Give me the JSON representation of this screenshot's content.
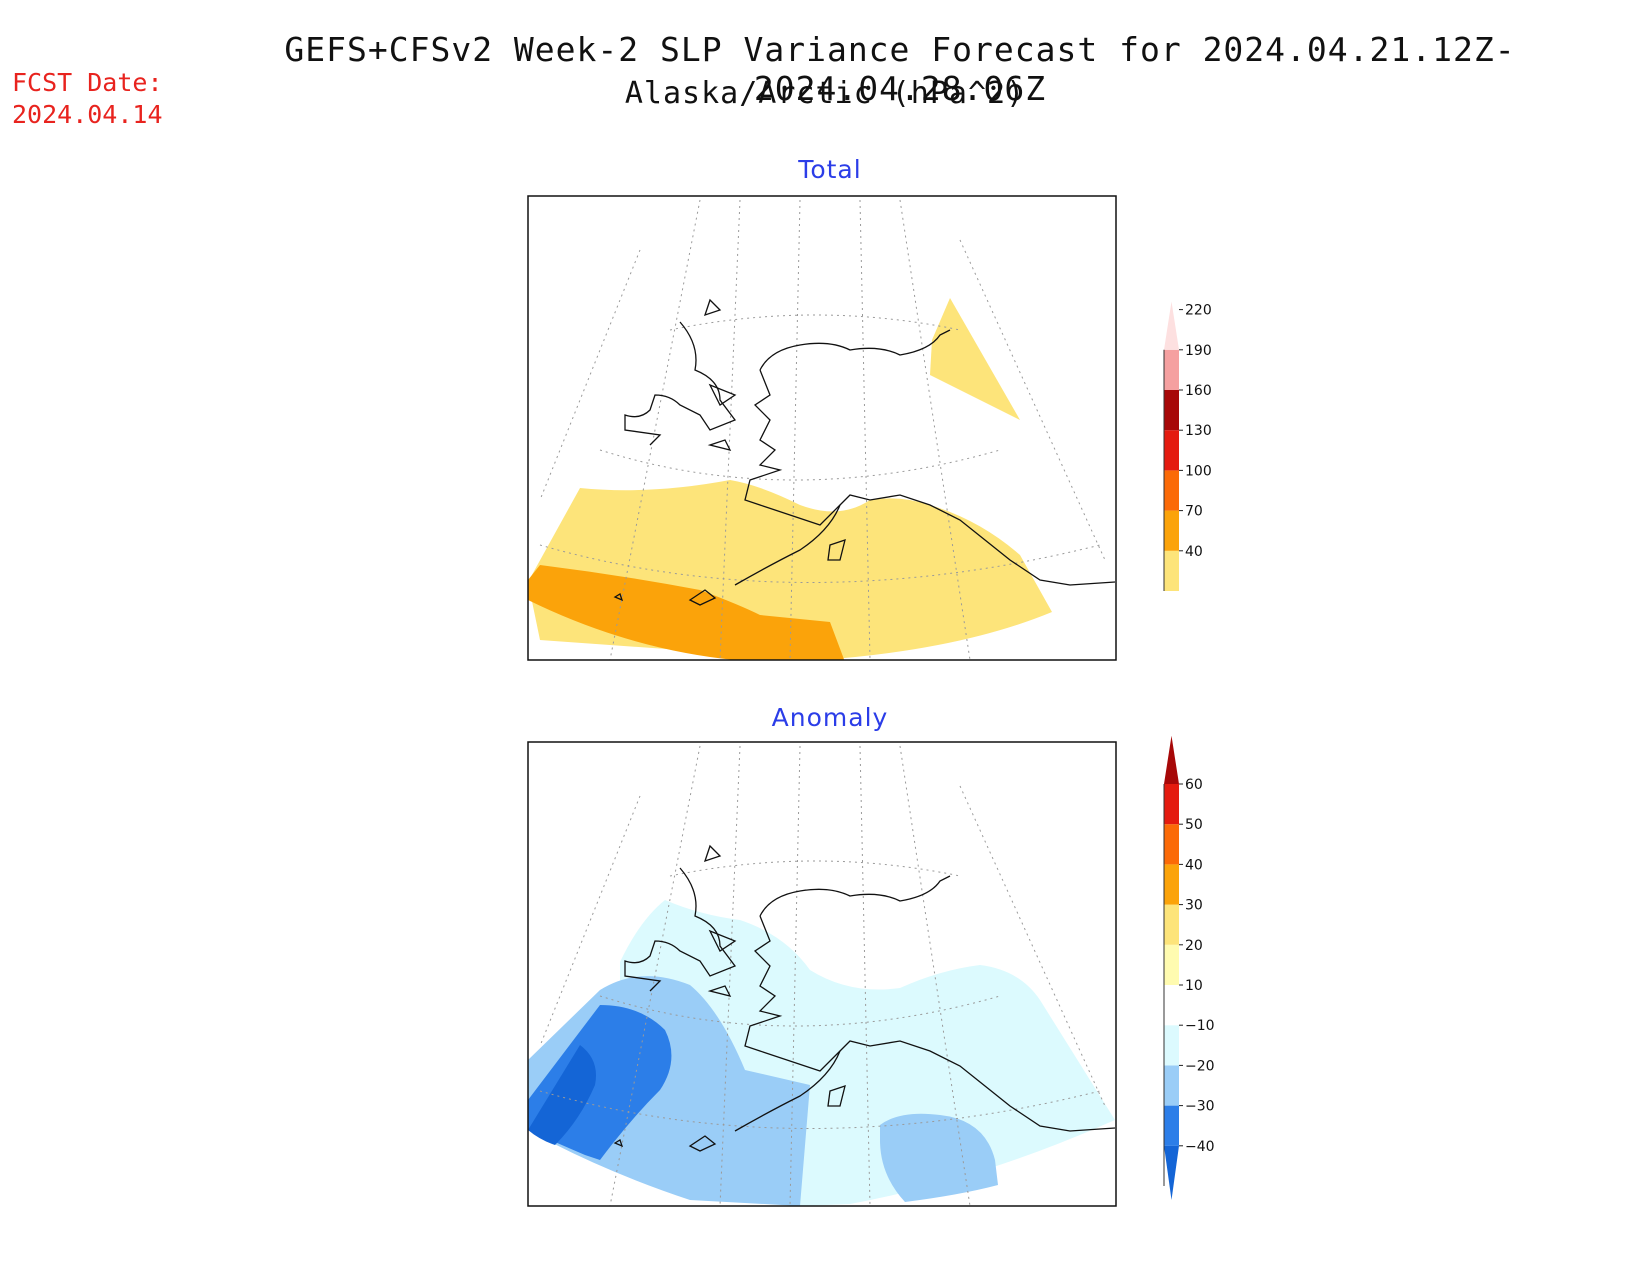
{
  "header": {
    "title": "GEFS+CFSv2 Week-2 SLP Variance Forecast for 2024.04.21.12Z-2024.04.28.06Z",
    "subtitle": "Alaska/Arctic (hPa^2)",
    "fcst_label": "FCST Date:",
    "fcst_date": "2024.04.14"
  },
  "panels": [
    {
      "title": "Total",
      "colorbar": {
        "levels": [
          "40",
          "70",
          "100",
          "130",
          "160",
          "190",
          "220"
        ],
        "colors": [
          "#fde47a",
          "#fba30a",
          "#fb6a07",
          "#e41b0f",
          "#a70808",
          "#f5a0a0",
          "#fde0e0"
        ]
      }
    },
    {
      "title": "Anomaly",
      "colorbar": {
        "levels": [
          "-40",
          "-30",
          "-20",
          "-10",
          "10",
          "20",
          "30",
          "40",
          "50",
          "60"
        ],
        "colors": [
          "#1465d6",
          "#2c7ee8",
          "#9acdf7",
          "#dcfafe",
          "#ffffff",
          "#fffbb0",
          "#fde47a",
          "#fba30a",
          "#fb6a07",
          "#e41b0f",
          "#a70808"
        ]
      }
    }
  ]
}
